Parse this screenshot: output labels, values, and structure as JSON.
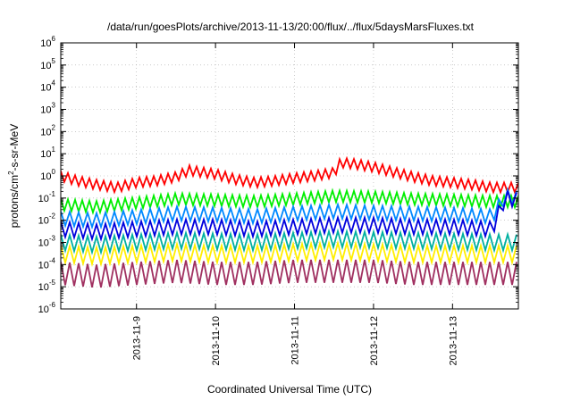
{
  "chart_data": {
    "type": "line",
    "title": "/data/run/goesPlots/archive/2013-11-13/20:00/flux/../flux/5daysMarsFluxes.txt",
    "xlabel": "Coordinated Universal Time (UTC)",
    "ylabel": "protons/cm²-s-sr-MeV",
    "ylabel_parts": {
      "a": "protons/cm",
      "sup": "2",
      "b": "-s-sr-MeV"
    },
    "x_scale": "time",
    "x_range": [
      "2013-11-08T01:00",
      "2013-11-13T20:00"
    ],
    "x_ticks": [
      "2013-11-9",
      "2013-11-10",
      "2013-11-11",
      "2013-11-12",
      "2013-11-13"
    ],
    "x_tick_values": [
      "2013-11-09T00:00",
      "2013-11-10T00:00",
      "2013-11-11T00:00",
      "2013-11-12T00:00",
      "2013-11-13T00:00"
    ],
    "y_scale": "log",
    "y_range": [
      1e-06,
      1000000.0
    ],
    "y_ticks": [
      {
        "base": "10",
        "exp": "-6",
        "value": 1e-06
      },
      {
        "base": "10",
        "exp": "-5",
        "value": 1e-05
      },
      {
        "base": "10",
        "exp": "-4",
        "value": 0.0001
      },
      {
        "base": "10",
        "exp": "-3",
        "value": 0.001
      },
      {
        "base": "10",
        "exp": "-2",
        "value": 0.01
      },
      {
        "base": "10",
        "exp": "-1",
        "value": 0.1
      },
      {
        "base": "10",
        "exp": "0",
        "value": 1
      },
      {
        "base": "10",
        "exp": "1",
        "value": 10
      },
      {
        "base": "10",
        "exp": "2",
        "value": 100
      },
      {
        "base": "10",
        "exp": "3",
        "value": 1000
      },
      {
        "base": "10",
        "exp": "4",
        "value": 10000
      },
      {
        "base": "10",
        "exp": "5",
        "value": 100000
      },
      {
        "base": "10",
        "exp": "6",
        "value": 1000000
      }
    ],
    "grid": true,
    "legend": "none",
    "series": [
      {
        "color": "#ff0000",
        "x": [
          "2013-11-08T01:00",
          "2013-11-08T06:00",
          "2013-11-08T12:00",
          "2013-11-08T18:00",
          "2013-11-09T00:00",
          "2013-11-09T06:00",
          "2013-11-09T12:00",
          "2013-11-09T16:00",
          "2013-11-09T18:00",
          "2013-11-10T00:00",
          "2013-11-10T06:00",
          "2013-11-10T12:00",
          "2013-11-10T18:00",
          "2013-11-11T00:00",
          "2013-11-11T06:00",
          "2013-11-11T12:00",
          "2013-11-11T14:00",
          "2013-11-11T18:00",
          "2013-11-12T00:00",
          "2013-11-12T06:00",
          "2013-11-12T12:00",
          "2013-11-12T18:00",
          "2013-11-13T00:00",
          "2013-11-13T06:00",
          "2013-11-13T12:00",
          "2013-11-13T20:00"
        ],
        "values": [
          1.0,
          0.6,
          0.4,
          0.3,
          0.5,
          0.6,
          0.9,
          1.8,
          1.6,
          1.2,
          0.7,
          0.5,
          0.6,
          0.8,
          1.0,
          1.4,
          4.0,
          3.5,
          2.5,
          1.5,
          0.9,
          0.6,
          0.5,
          0.4,
          0.3,
          0.3
        ]
      },
      {
        "color": "#00ee00",
        "x": [
          "2013-11-08T01:00",
          "2013-11-08T12:00",
          "2013-11-09T00:00",
          "2013-11-09T12:00",
          "2013-11-10T00:00",
          "2013-11-10T12:00",
          "2013-11-11T00:00",
          "2013-11-11T12:00",
          "2013-11-12T00:00",
          "2013-11-12T12:00",
          "2013-11-13T00:00",
          "2013-11-13T12:00",
          "2013-11-13T20:00"
        ],
        "values": [
          0.05,
          0.04,
          0.06,
          0.09,
          0.08,
          0.07,
          0.09,
          0.12,
          0.11,
          0.09,
          0.08,
          0.07,
          0.07
        ]
      },
      {
        "color": "#0088ff",
        "x": [
          "2013-11-08T01:00",
          "2013-11-08T12:00",
          "2013-11-09T00:00",
          "2013-11-09T12:00",
          "2013-11-10T00:00",
          "2013-11-10T12:00",
          "2013-11-11T00:00",
          "2013-11-11T12:00",
          "2013-11-12T00:00",
          "2013-11-12T12:00",
          "2013-11-13T00:00",
          "2013-11-13T12:00",
          "2013-11-13T16:00",
          "2013-11-13T20:00"
        ],
        "values": [
          0.012,
          0.01,
          0.014,
          0.02,
          0.018,
          0.015,
          0.02,
          0.025,
          0.022,
          0.02,
          0.018,
          0.015,
          0.12,
          0.1
        ]
      },
      {
        "color": "#0000dd",
        "x": [
          "2013-11-08T01:00",
          "2013-11-08T12:00",
          "2013-11-09T00:00",
          "2013-11-09T12:00",
          "2013-11-10T00:00",
          "2013-11-10T12:00",
          "2013-11-11T00:00",
          "2013-11-11T12:00",
          "2013-11-12T00:00",
          "2013-11-12T12:00",
          "2013-11-13T00:00",
          "2013-11-13T12:00",
          "2013-11-13T16:00",
          "2013-11-13T20:00"
        ],
        "values": [
          0.004,
          0.003,
          0.004,
          0.005,
          0.005,
          0.004,
          0.005,
          0.006,
          0.006,
          0.005,
          0.005,
          0.004,
          0.1,
          0.08
        ]
      },
      {
        "color": "#00b0a0",
        "x": [
          "2013-11-08T01:00",
          "2013-11-08T12:00",
          "2013-11-09T00:00",
          "2013-11-09T12:00",
          "2013-11-10T00:00",
          "2013-11-10T12:00",
          "2013-11-11T00:00",
          "2013-11-11T12:00",
          "2013-11-12T00:00",
          "2013-11-12T12:00",
          "2013-11-13T00:00",
          "2013-11-13T12:00",
          "2013-11-13T20:00"
        ],
        "values": [
          0.001,
          0.0008,
          0.001,
          0.0012,
          0.0011,
          0.001,
          0.0012,
          0.0014,
          0.0013,
          0.0012,
          0.0011,
          0.001,
          0.001
        ]
      },
      {
        "color": "#ffee00",
        "x": [
          "2013-11-08T01:00",
          "2013-11-08T12:00",
          "2013-11-09T00:00",
          "2013-11-09T12:00",
          "2013-11-10T00:00",
          "2013-11-10T12:00",
          "2013-11-11T00:00",
          "2013-11-11T12:00",
          "2013-11-12T00:00",
          "2013-11-12T12:00",
          "2013-11-13T00:00",
          "2013-11-13T12:00",
          "2013-11-13T20:00"
        ],
        "values": [
          0.0003,
          0.00025,
          0.0003,
          0.00035,
          0.0003,
          0.0003,
          0.00035,
          0.0004,
          0.00035,
          0.0003,
          0.0003,
          0.0003,
          0.0003
        ]
      },
      {
        "color": "#a03060",
        "x": [
          "2013-11-08T01:00",
          "2013-11-08T12:00",
          "2013-11-09T00:00",
          "2013-11-09T12:00",
          "2013-11-10T00:00",
          "2013-11-10T12:00",
          "2013-11-11T00:00",
          "2013-11-11T12:00",
          "2013-11-12T00:00",
          "2013-11-12T12:00",
          "2013-11-13T00:00",
          "2013-11-13T12:00",
          "2013-11-13T20:00"
        ],
        "values": [
          4e-05,
          3e-05,
          4e-05,
          5e-05,
          4e-05,
          4e-05,
          5e-05,
          5e-05,
          5e-05,
          4e-05,
          4e-05,
          4e-05,
          4e-05
        ]
      }
    ]
  }
}
